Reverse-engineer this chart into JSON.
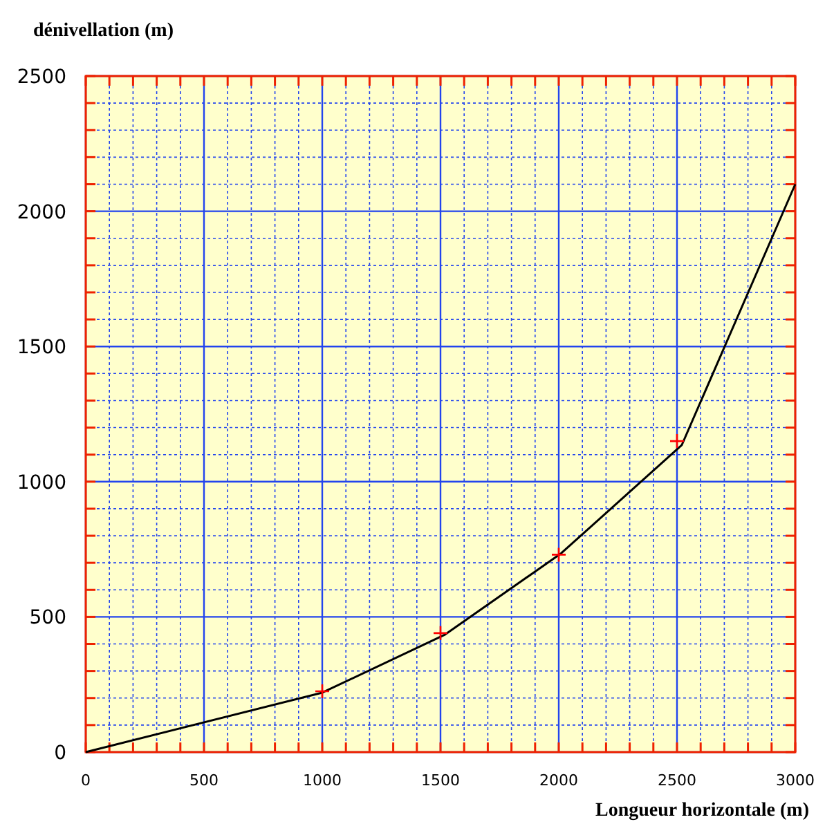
{
  "chart_data": {
    "type": "line",
    "xlabel": "Longueur horizontale (m)",
    "ylabel": "dénivellation (m)",
    "xlim": [
      0,
      3000
    ],
    "ylim": [
      0,
      2500
    ],
    "xticks": [
      0,
      {
        "value": 100,
        "label": null
      },
      {
        "value": 200,
        "label": null
      },
      {
        "value": 300,
        "label": null
      },
      {
        "value": 400,
        "label": null
      },
      500,
      {
        "value": 600,
        "label": null
      },
      {
        "value": 700,
        "label": null
      },
      {
        "value": 800,
        "label": null
      },
      {
        "value": 900,
        "label": null
      },
      1000,
      {
        "value": 1100,
        "label": null
      },
      {
        "value": 1200,
        "label": null
      },
      {
        "value": 1300,
        "label": null
      },
      {
        "value": 1400,
        "label": null
      },
      1500,
      {
        "value": 1600,
        "label": null
      },
      {
        "value": 1700,
        "label": null
      },
      {
        "value": 1800,
        "label": null
      },
      {
        "value": 1900,
        "label": null
      },
      2000,
      {
        "value": 2100,
        "label": null
      },
      {
        "value": 2200,
        "label": null
      },
      {
        "value": 2300,
        "label": null
      },
      {
        "value": 2400,
        "label": null
      },
      2500,
      {
        "value": 2600,
        "label": null
      },
      {
        "value": 2700,
        "label": null
      },
      {
        "value": 2800,
        "label": null
      },
      {
        "value": 2900,
        "label": null
      },
      3000
    ],
    "yticks": [
      0,
      {
        "value": 100,
        "label": null
      },
      {
        "value": 200,
        "label": null
      },
      {
        "value": 300,
        "label": null
      },
      {
        "value": 400,
        "label": null
      },
      500,
      {
        "value": 600,
        "label": null
      },
      {
        "value": 700,
        "label": null
      },
      {
        "value": 800,
        "label": null
      },
      {
        "value": 900,
        "label": null
      },
      1000,
      {
        "value": 1100,
        "label": null
      },
      {
        "value": 1200,
        "label": null
      },
      {
        "value": 1300,
        "label": null
      },
      {
        "value": 1400,
        "label": null
      },
      1500,
      {
        "value": 1600,
        "label": null
      },
      {
        "value": 1700,
        "label": null
      },
      {
        "value": 1800,
        "label": null
      },
      {
        "value": 1900,
        "label": null
      },
      2000,
      {
        "value": 2100,
        "label": null
      },
      {
        "value": 2200,
        "label": null
      },
      {
        "value": 2300,
        "label": null
      },
      {
        "value": 2400,
        "label": null
      },
      2500
    ],
    "grid": true,
    "series": [
      {
        "color": "#000000",
        "x": [
          0,
          1000,
          1520,
          2010,
          2520,
          3000
        ],
        "values": [
          0,
          220,
          435,
          735,
          1135,
          2100
        ],
        "marker": "none"
      },
      {
        "type": "scatter",
        "color": "#ff0000",
        "marker": "cross",
        "x": [
          1000,
          1500,
          2000,
          2500
        ],
        "values": [
          225,
          440,
          730,
          1150
        ]
      }
    ]
  }
}
